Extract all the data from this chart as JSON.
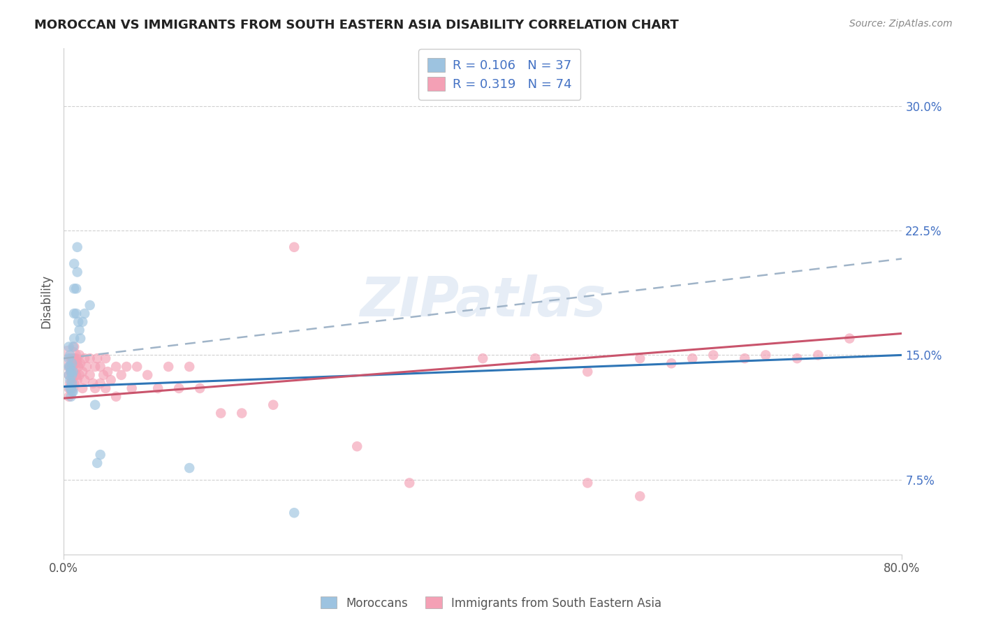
{
  "title": "MOROCCAN VS IMMIGRANTS FROM SOUTH EASTERN ASIA DISABILITY CORRELATION CHART",
  "source": "Source: ZipAtlas.com",
  "ylabel": "Disability",
  "yticks": [
    0.075,
    0.15,
    0.225,
    0.3
  ],
  "ytick_labels": [
    "7.5%",
    "15.0%",
    "22.5%",
    "30.0%"
  ],
  "xlim": [
    0.0,
    0.8
  ],
  "ylim": [
    0.03,
    0.335
  ],
  "color_moroccan": "#9dc3e0",
  "color_sea": "#f4a0b5",
  "color_moroccan_line": "#2e75b6",
  "color_sea_line": "#c9546c",
  "color_dashed": "#a0b4c8",
  "moroccan_x": [
    0.005,
    0.005,
    0.005,
    0.005,
    0.006,
    0.006,
    0.006,
    0.006,
    0.007,
    0.007,
    0.007,
    0.008,
    0.008,
    0.008,
    0.008,
    0.009,
    0.009,
    0.009,
    0.01,
    0.01,
    0.01,
    0.01,
    0.012,
    0.012,
    0.013,
    0.013,
    0.014,
    0.015,
    0.016,
    0.018,
    0.02,
    0.025,
    0.03,
    0.032,
    0.035,
    0.12,
    0.22
  ],
  "moroccan_y": [
    0.138,
    0.143,
    0.148,
    0.155,
    0.13,
    0.135,
    0.143,
    0.15,
    0.125,
    0.13,
    0.14,
    0.128,
    0.133,
    0.138,
    0.145,
    0.128,
    0.14,
    0.155,
    0.19,
    0.175,
    0.16,
    0.205,
    0.19,
    0.175,
    0.2,
    0.215,
    0.17,
    0.165,
    0.16,
    0.17,
    0.175,
    0.18,
    0.12,
    0.085,
    0.09,
    0.082,
    0.055
  ],
  "moroccan_large_x": [
    0.005
  ],
  "moroccan_large_y": [
    0.148
  ],
  "sea_x": [
    0.005,
    0.005,
    0.005,
    0.006,
    0.006,
    0.007,
    0.007,
    0.007,
    0.008,
    0.008,
    0.009,
    0.009,
    0.01,
    0.01,
    0.01,
    0.01,
    0.012,
    0.012,
    0.013,
    0.013,
    0.014,
    0.015,
    0.015,
    0.016,
    0.018,
    0.018,
    0.02,
    0.02,
    0.022,
    0.025,
    0.025,
    0.028,
    0.03,
    0.03,
    0.032,
    0.035,
    0.035,
    0.038,
    0.04,
    0.04,
    0.042,
    0.045,
    0.05,
    0.05,
    0.055,
    0.06,
    0.065,
    0.07,
    0.08,
    0.09,
    0.1,
    0.11,
    0.12,
    0.13,
    0.15,
    0.17,
    0.2,
    0.22,
    0.28,
    0.33,
    0.4,
    0.45,
    0.5,
    0.55,
    0.6,
    0.65,
    0.67,
    0.7,
    0.72,
    0.75,
    0.5,
    0.55,
    0.58,
    0.62
  ],
  "sea_y": [
    0.138,
    0.13,
    0.125,
    0.143,
    0.133,
    0.148,
    0.14,
    0.13,
    0.143,
    0.135,
    0.148,
    0.13,
    0.155,
    0.148,
    0.14,
    0.133,
    0.148,
    0.138,
    0.145,
    0.135,
    0.143,
    0.15,
    0.138,
    0.145,
    0.13,
    0.14,
    0.148,
    0.135,
    0.143,
    0.148,
    0.138,
    0.133,
    0.143,
    0.13,
    0.148,
    0.143,
    0.133,
    0.138,
    0.148,
    0.13,
    0.14,
    0.135,
    0.143,
    0.125,
    0.138,
    0.143,
    0.13,
    0.143,
    0.138,
    0.13,
    0.143,
    0.13,
    0.143,
    0.13,
    0.115,
    0.115,
    0.12,
    0.215,
    0.095,
    0.073,
    0.148,
    0.148,
    0.14,
    0.148,
    0.148,
    0.148,
    0.15,
    0.148,
    0.15,
    0.16,
    0.073,
    0.065,
    0.145,
    0.15
  ],
  "sea_large_x": [
    0.005
  ],
  "sea_large_y": [
    0.148
  ],
  "moroccan_trendline": [
    0.131,
    0.15
  ],
  "sea_trendline": [
    0.124,
    0.163
  ],
  "dashed_trendline": [
    0.148,
    0.208
  ],
  "watermark_text": "ZIPatlas",
  "background_color": "#ffffff",
  "grid_color": "#d0d0d0",
  "title_color": "#222222",
  "source_color": "#888888",
  "ytick_color": "#4472c4",
  "xtick_color": "#555555"
}
